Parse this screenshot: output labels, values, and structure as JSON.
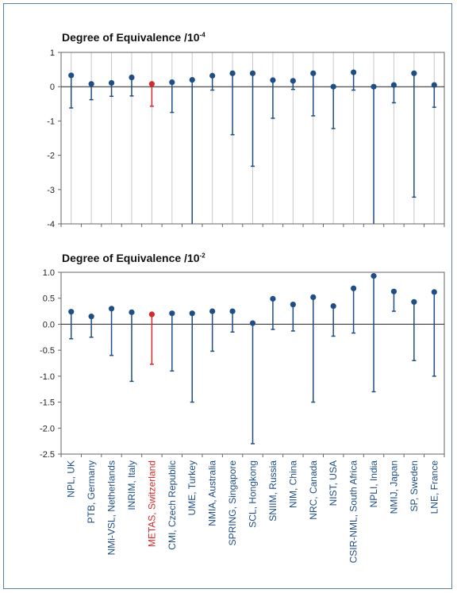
{
  "colors": {
    "normal": "#1f4e85",
    "highlight": "#d42a2a",
    "grid": "#c8c8c8",
    "frame": "#5a7fa3"
  },
  "categories": [
    "NPL, UK",
    "PTB, Germany",
    "NMi-VSL, Netherlands",
    "INRIM, Italy",
    "METAS, Switzerland",
    "CMI, Czech Republic",
    "UME, Turkey",
    "NMIA, Australia",
    "SPRING, Singapore",
    "SCL, Hongkong",
    "SNIIM, Russia",
    "NIM, China",
    "NRC, Canada",
    "NIST, USA",
    "CSIR-NML, South Africa",
    "NPLI, India",
    "NMIJ, Japan",
    "SP, Sweden",
    "LNE, France"
  ],
  "highlight_category": "METAS, Switzerland",
  "chart_data": [
    {
      "type": "scatter",
      "title_text": "Degree of Equivalence /10",
      "title_exp": "-4",
      "ylim": [
        -4,
        1
      ],
      "yticks": [
        "1",
        "0",
        "-1",
        "-2",
        "-3",
        "-4"
      ],
      "ytick_values": [
        1,
        0,
        -1,
        -2,
        -3,
        -4
      ],
      "grid": true,
      "values": [
        0.33,
        0.08,
        0.11,
        0.27,
        0.08,
        0.13,
        0.2,
        0.32,
        0.39,
        0.39,
        0.19,
        0.17,
        0.39,
        0.0,
        0.42,
        0.0,
        0.05,
        0.39,
        0.05
      ],
      "lower": [
        -0.62,
        -0.38,
        -0.28,
        -0.27,
        -0.57,
        -0.75,
        -4.0,
        -0.1,
        -1.4,
        -2.32,
        -0.92,
        -0.08,
        -0.85,
        -1.22,
        -0.1,
        -4.0,
        -0.47,
        -3.22,
        -0.6
      ],
      "upper": [
        0.33,
        0.08,
        0.11,
        0.27,
        0.08,
        0.13,
        0.2,
        0.32,
        0.39,
        0.39,
        0.19,
        0.17,
        0.39,
        0.0,
        0.42,
        0.0,
        0.05,
        0.39,
        0.05
      ]
    },
    {
      "type": "scatter",
      "title_text": "Degree of Equivalence /10",
      "title_exp": "-2",
      "ylim": [
        -2.5,
        1.0
      ],
      "yticks": [
        "1.0",
        "0.5",
        "0.0",
        "-0.5",
        "-1.0",
        "-1.5",
        "-2.0",
        "-2.5"
      ],
      "ytick_values": [
        1.0,
        0.5,
        0.0,
        -0.5,
        -1.0,
        -1.5,
        -2.0,
        -2.5
      ],
      "grid": false,
      "values": [
        0.24,
        0.15,
        0.3,
        0.23,
        0.19,
        0.21,
        0.21,
        0.25,
        0.25,
        0.02,
        0.49,
        0.38,
        0.52,
        0.35,
        0.69,
        0.93,
        0.63,
        0.43,
        0.62
      ],
      "lower": [
        -0.28,
        -0.25,
        -0.6,
        -1.1,
        -0.77,
        -0.9,
        -1.5,
        -0.52,
        -0.15,
        -2.3,
        -0.1,
        -0.13,
        -1.5,
        -0.23,
        -0.17,
        -1.3,
        0.25,
        -0.7,
        -1.0
      ],
      "upper": [
        0.24,
        0.15,
        0.3,
        0.23,
        0.19,
        0.21,
        0.21,
        0.25,
        0.25,
        0.02,
        0.49,
        0.38,
        0.52,
        0.35,
        0.69,
        0.93,
        0.63,
        0.43,
        0.62
      ]
    }
  ]
}
